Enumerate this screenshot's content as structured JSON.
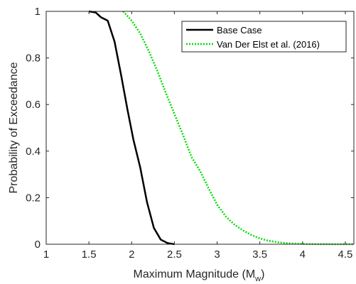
{
  "chart_data": {
    "type": "line",
    "xlabel": "Maximum Magnitude (M",
    "xlabel_subscript": "w",
    "xlabel_suffix": ")",
    "ylabel": "Probability of Exceedance",
    "xlim": [
      1,
      4.6
    ],
    "ylim": [
      0,
      1
    ],
    "x_ticks": [
      1,
      1.5,
      2,
      2.5,
      3,
      3.5,
      4,
      4.5
    ],
    "x_tick_labels": [
      "1",
      "1.5",
      "2",
      "2.5",
      "3",
      "3.5",
      "4",
      "4.5"
    ],
    "y_ticks": [
      0,
      0.2,
      0.4,
      0.6,
      0.8,
      1
    ],
    "y_tick_labels": [
      "0",
      "0.2",
      "0.4",
      "0.6",
      "0.8",
      "1"
    ],
    "grid": false,
    "legend_position": "top-right",
    "series": [
      {
        "name": "Base Case",
        "color": "#000000",
        "style": "solid",
        "x": [
          1.5,
          1.58,
          1.64,
          1.72,
          1.8,
          1.88,
          1.95,
          2.02,
          2.1,
          2.18,
          2.26,
          2.34,
          2.42,
          2.5
        ],
        "y": [
          1.0,
          0.995,
          0.975,
          0.96,
          0.87,
          0.72,
          0.58,
          0.45,
          0.33,
          0.18,
          0.07,
          0.02,
          0.005,
          0.0
        ]
      },
      {
        "name": "Van Der Elst et al. (2016)",
        "color": "#00dd00",
        "style": "dotted",
        "x": [
          1.9,
          2.0,
          2.1,
          2.2,
          2.3,
          2.4,
          2.5,
          2.6,
          2.7,
          2.8,
          2.9,
          3.0,
          3.1,
          3.2,
          3.3,
          3.4,
          3.5,
          3.6,
          3.7,
          3.8,
          3.9,
          4.0,
          4.1,
          4.2,
          4.3,
          4.4,
          4.5,
          4.6
        ],
        "y": [
          1.0,
          0.96,
          0.905,
          0.83,
          0.745,
          0.65,
          0.56,
          0.47,
          0.375,
          0.315,
          0.24,
          0.17,
          0.12,
          0.085,
          0.06,
          0.04,
          0.025,
          0.015,
          0.009,
          0.005,
          0.003,
          0.0015,
          0.0008,
          0.0004,
          0.0002,
          0.0001,
          0.0,
          0.0
        ]
      }
    ]
  }
}
